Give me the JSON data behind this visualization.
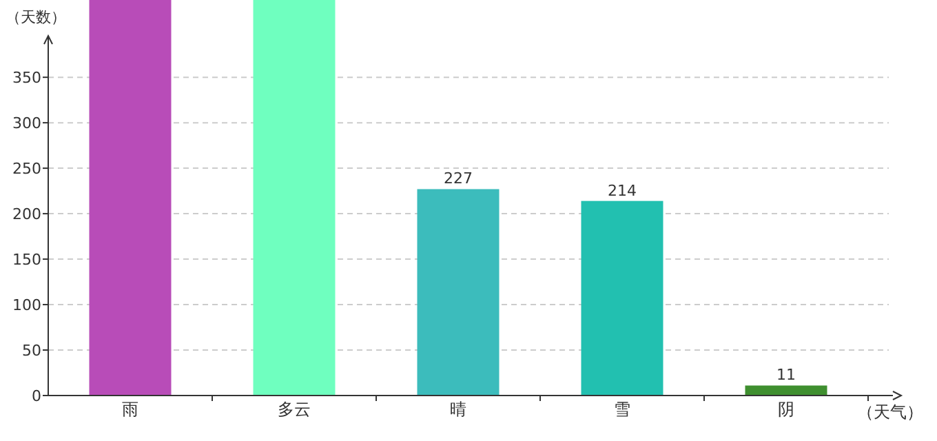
{
  "chart_data": {
    "type": "bar",
    "xlabel": "（天气）",
    "ylabel": "（天数）",
    "categories": [
      "雨",
      "多云",
      "晴",
      "雪",
      "阴"
    ],
    "values": [
      435,
      435,
      227,
      214,
      11
    ],
    "colors": [
      "#b84cb8",
      "#6fffbf",
      "#3cbcbc",
      "#22c0b0",
      "#3f8f2f"
    ],
    "value_labels": [
      null,
      null,
      "227",
      "214",
      "11"
    ],
    "ylim": [
      0,
      435
    ],
    "yticks": [
      0,
      50,
      100,
      150,
      200,
      250,
      300,
      350
    ],
    "grid": "y"
  }
}
